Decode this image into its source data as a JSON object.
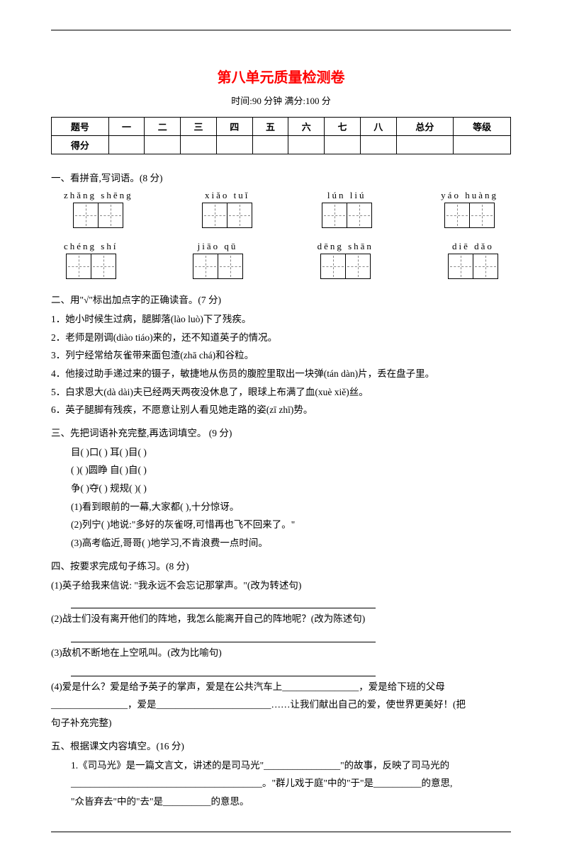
{
  "title": "第八单元质量检测卷",
  "subtitle": "时间:90 分钟   满分:100 分",
  "score_table": {
    "row1": [
      "题号",
      "一",
      "二",
      "三",
      "四",
      "五",
      "六",
      "七",
      "八",
      "总分",
      "等级"
    ],
    "row2_label": "得分"
  },
  "s1": {
    "head": "一、看拼音,写词语。(8 分)",
    "row1": [
      "zhǎng shēng",
      "xiǎo  tuǐ",
      "lún   liú",
      "yáo huàng"
    ],
    "row2": [
      "chéng  shí",
      "jiāo  qū",
      "dēng  shān",
      "diē  dǎo"
    ]
  },
  "s2": {
    "head": "二、用\"√\"标出加点字的正确读音。(7 分)",
    "items": [
      "1．她小时候生过病，腿脚落(lào  luò)下了残疾。",
      "2．老师是刚调(diào  tiáo)来的，还不知道英子的情况。",
      "3．列宁经常给灰雀带来面包渣(zhā  chá)和谷粒。",
      "4．他接过助手递过来的镊子，敏捷地从伤员的腹腔里取出一块弹(tán  dàn)片，丢在盘子里。",
      "5．白求恩大(dà  dài)夫已经两天两夜没休息了，眼球上布满了血(xuè  xiě)丝。",
      "6．英子腿脚有残疾，不愿意让别人看见她走路的姿(zī  zhī)势。"
    ]
  },
  "s3": {
    "head": "三、先把词语补充完整,再选词填空。   (9 分)",
    "lines": [
      "目(     )口(     )   耳(     )目(     )",
      "(     )(     )圆睁   自(     )自(     )",
      "争(     )夺(     )   规规(     )(     )",
      "(1)看到眼前的一幕,大家都(           ),十分惊讶。",
      "(2)列宁(           )地说:\"多好的灰雀呀,可惜再也飞不回来了。\"",
      "(3)高考临近,哥哥(           )地学习,不肯浪费一点时间。"
    ]
  },
  "s4": {
    "head": "四、按要求完成句子练习。(8 分)",
    "q1": "(1)英子给我来信说: \"我永远不会忘记那掌声。\"(改为转述句)",
    "q2": "(2)战士们没有离开他们的阵地，我怎么能离开自己的阵地呢？(改为陈述句)",
    "q3": "(3)敌机不断地在上空吼叫。(改为比喻句)",
    "q4a": "(4)爱是什么？爱是给予英子的掌声，爱是在公共汽车上________________，爱是给下班的父母",
    "q4b": "________________，爱是________________________……让我们献出自己的爱，使世界更美好！(把",
    "q4c": "句子补充完整)"
  },
  "s5": {
    "head": "五、根据课文内容填空。(16 分)",
    "l1a": "1.《司马光》是一篇文言文，讲述的是司马光\"________________\"的故事，反映了司马光的",
    "l1b": "________________________________________。\"群儿戏于庭\"中的\"于\"是__________的意思,",
    "l1c": "\"众皆弃去\"中的\"去\"是__________的意思。"
  }
}
